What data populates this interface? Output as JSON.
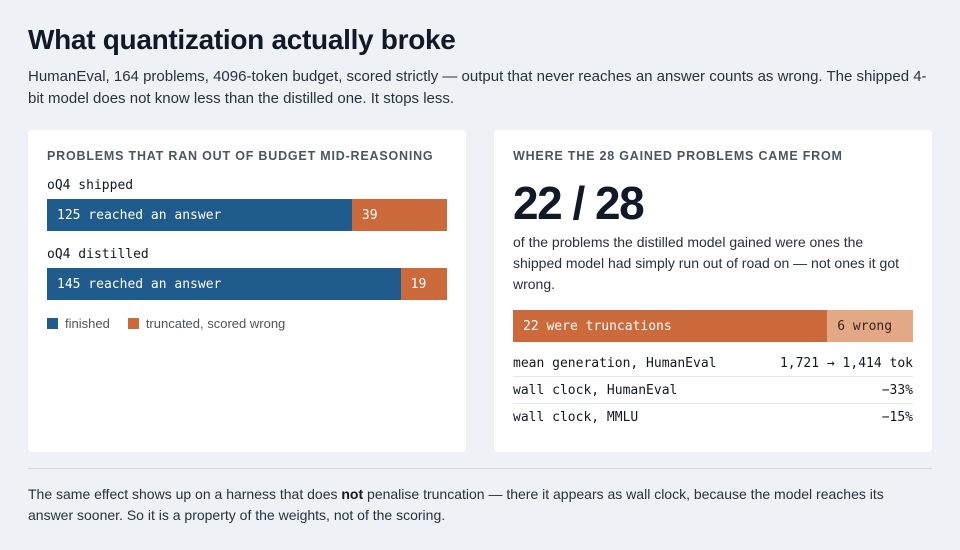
{
  "header": {
    "title": "What quantization actually broke",
    "intro": "HumanEval, 164 problems, 4096-token budget, scored strictly — output that never reaches an answer counts as wrong. The shipped 4-bit model does not know less than the distilled one. It stops less."
  },
  "left_card": {
    "heading": "PROBLEMS THAT RAN OUT OF BUDGET MID-REASONING",
    "legend": {
      "finished": "finished",
      "truncated": "truncated, scored wrong"
    }
  },
  "right_card": {
    "heading": "WHERE THE 28 GAINED PROBLEMS CAME FROM",
    "big_number": "22 / 28",
    "description": "of the problems the distilled model gained were ones the shipped model had simply run out of road on — not ones it got wrong.",
    "stats": [
      {
        "label": "mean generation, HumanEval",
        "value": "1,721 → 1,414 tok"
      },
      {
        "label": "wall clock, HumanEval",
        "value": "−33%"
      },
      {
        "label": "wall clock, MMLU",
        "value": "−15%"
      }
    ]
  },
  "footer": {
    "before": "The same effect shows up on a harness that does ",
    "bold": "not",
    "after": " penalise truncation — there it appears as wall clock, because the model reaches its answer sooner. So it is a property of the weights, not of the scoring."
  },
  "colors": {
    "finished": "#1f5b8c",
    "truncated": "#cc6a3b",
    "wrong": "#e3a886"
  },
  "chart_data": [
    {
      "type": "bar",
      "stacked": true,
      "orientation": "horizontal",
      "title": "PROBLEMS THAT RAN OUT OF BUDGET MID-REASONING",
      "total": 164,
      "categories": [
        "oQ4 shipped",
        "oQ4 distilled"
      ],
      "series": [
        {
          "name": "finished",
          "values": [
            125,
            145
          ],
          "labels": [
            "125 reached an answer",
            "145 reached an answer"
          ]
        },
        {
          "name": "truncated, scored wrong",
          "values": [
            39,
            19
          ],
          "labels": [
            "39",
            "19"
          ]
        }
      ]
    },
    {
      "type": "bar",
      "stacked": true,
      "orientation": "horizontal",
      "title": "WHERE THE 28 GAINED PROBLEMS CAME FROM",
      "total": 28,
      "series": [
        {
          "name": "",
          "values": [
            22
          ],
          "labels": [
            "22 were truncations"
          ]
        },
        {
          "name": "",
          "values": [
            6
          ],
          "labels": [
            "6 wrong"
          ]
        }
      ]
    }
  ]
}
